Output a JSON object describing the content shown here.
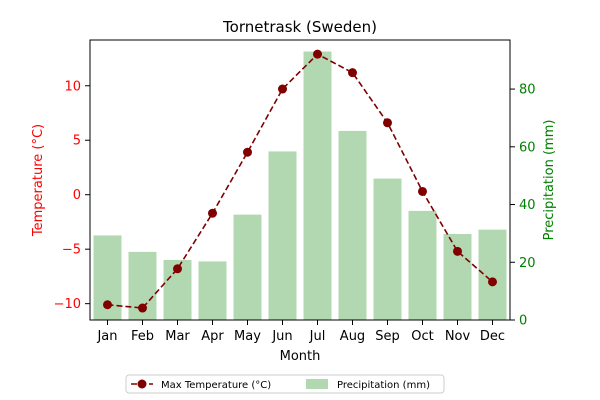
{
  "chart_data": {
    "type": "bar+line",
    "title": "Tornetrask (Sweden)",
    "xlabel": "Month",
    "categories": [
      "Jan",
      "Feb",
      "Mar",
      "Apr",
      "May",
      "Jun",
      "Jul",
      "Aug",
      "Sep",
      "Oct",
      "Nov",
      "Dec"
    ],
    "left_axis": {
      "label": "Temperature (°C)",
      "color": "#ff0000",
      "ylim": [
        -11.5,
        14.2
      ],
      "ticks": [
        -10,
        -5,
        0,
        5,
        10
      ]
    },
    "right_axis": {
      "label": "Precipitation (mm)",
      "color": "#008000",
      "ylim": [
        0,
        97
      ],
      "ticks": [
        0,
        20,
        40,
        60,
        80
      ]
    },
    "series": [
      {
        "name": "Max Temperature (°C)",
        "kind": "line",
        "axis": "left",
        "color": "#800000",
        "line_style": "dashed",
        "marker": "circle",
        "values": [
          -10.1,
          -10.4,
          -6.8,
          -1.7,
          3.9,
          9.7,
          12.9,
          11.2,
          6.6,
          0.3,
          -5.2,
          -8.0
        ]
      },
      {
        "name": "Precipitation (mm)",
        "kind": "bar",
        "axis": "right",
        "color": "#b2d8b2",
        "values": [
          29.3,
          23.6,
          20.8,
          20.3,
          36.5,
          58.4,
          93.0,
          65.5,
          49.0,
          37.8,
          29.8,
          31.3
        ]
      }
    ],
    "legend": {
      "placement": "bottom-center",
      "columns": 2
    },
    "grid": false
  }
}
